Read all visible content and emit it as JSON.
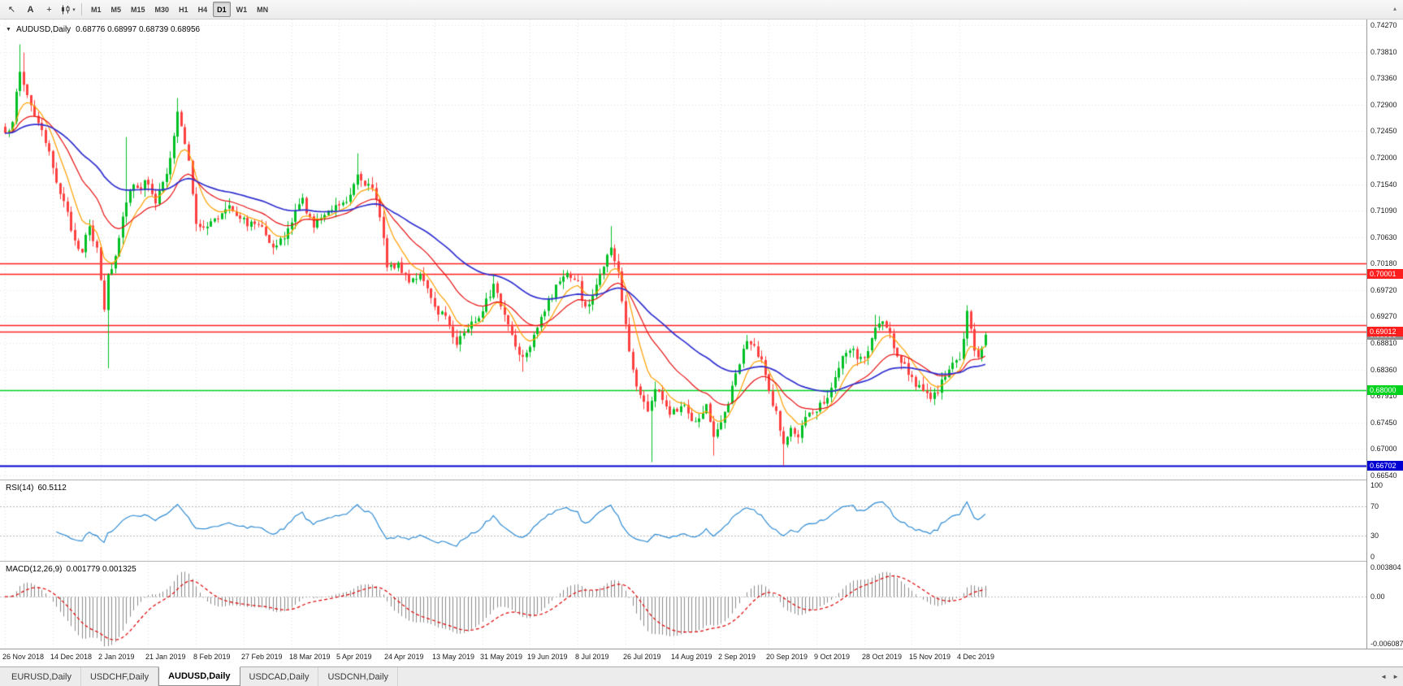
{
  "toolbar": {
    "tools": [
      {
        "id": "cursor",
        "icon": "pointer-icon"
      },
      {
        "id": "text",
        "label": "A"
      },
      {
        "id": "crosshair",
        "icon": "crosshair-icon"
      },
      {
        "id": "chart-type",
        "icon": "candlestick-chart-icon",
        "dropdown": true
      }
    ],
    "timeframes": [
      "M1",
      "M5",
      "M15",
      "M30",
      "H1",
      "H4",
      "D1",
      "W1",
      "MN"
    ],
    "active_timeframe": "D1"
  },
  "chart": {
    "title": "AUDUSD,Daily",
    "ohlc": "0.68776 0.68997 0.68739 0.68956"
  },
  "rsi": {
    "label": "RSI(14)",
    "value": "60.5112",
    "axis_labels": [
      "100",
      "70",
      "30",
      "0"
    ]
  },
  "macd": {
    "label": "MACD(12,26,9)",
    "values": "0.001779 0.001325",
    "axis_labels": [
      "0.003804",
      "0.00",
      "-0.006087"
    ]
  },
  "current_price": {
    "value": "0.68956",
    "color": "#909090"
  },
  "tabs": {
    "items": [
      "EURUSD,Daily",
      "USDCHF,Daily",
      "AUDUSD,Daily",
      "USDCAD,Daily",
      "USDCNH,Daily"
    ],
    "active_index": 2
  },
  "chart_data": {
    "type": "candlestick",
    "symbol": "AUDUSD",
    "timeframe": "Daily",
    "candle_count": 268,
    "last_candle": {
      "open": 0.68776,
      "high": 0.68997,
      "low": 0.68739,
      "close": 0.68956
    },
    "candle_up_color": "#00C024",
    "candle_down_color": "#FF4040",
    "y_ticks": [
      "0.74270",
      "0.73810",
      "0.73360",
      "0.72900",
      "0.72450",
      "0.72000",
      "0.71540",
      "0.71090",
      "0.70630",
      "0.70180",
      "0.69720",
      "0.69270",
      "0.68810",
      "0.68360",
      "0.67910",
      "0.67450",
      "0.67000",
      "0.66540"
    ],
    "x_labels": [
      "26 Nov 2018",
      "14 Dec 2018",
      "2 Jan 2019",
      "21 Jan 2019",
      "8 Feb 2019",
      "27 Feb 2019",
      "18 Mar 2019",
      "5 Apr 2019",
      "24 Apr 2019",
      "13 May 2019",
      "31 May 2019",
      "19 Jun 2019",
      "8 Jul 2019",
      "26 Jul 2019",
      "14 Aug 2019",
      "2 Sep 2019",
      "20 Sep 2019",
      "9 Oct 2019",
      "28 Oct 2019",
      "15 Nov 2019",
      "4 Dec 2019"
    ],
    "bars_per_label": 13,
    "hlines": [
      {
        "price": 0.7018,
        "label": null,
        "color": "#FF1E1E",
        "lw": 1.5
      },
      {
        "price": 0.70001,
        "label": "0.70001",
        "color": "#FF1E1E",
        "lw": 1.5
      },
      {
        "price": 0.6912,
        "label": null,
        "color": "#FF1E1E",
        "lw": 1.5
      },
      {
        "price": 0.69012,
        "label": "0.69012",
        "color": "#FF1E1E",
        "lw": 1.5
      },
      {
        "price": 0.68,
        "label": "0.68000",
        "color": "#00D21E",
        "lw": 1.5
      },
      {
        "price": 0.66702,
        "label": "0.66702",
        "color": "#0000D2",
        "lw": 2
      }
    ],
    "close_path_anchors": [
      [
        0,
        0.7235
      ],
      [
        2,
        0.7268
      ],
      [
        4,
        0.7345
      ],
      [
        6,
        0.7308
      ],
      [
        9,
        0.7258
      ],
      [
        13,
        0.7185
      ],
      [
        16,
        0.712
      ],
      [
        19,
        0.7058
      ],
      [
        21,
        0.7042
      ],
      [
        23,
        0.7078
      ],
      [
        25,
        0.704
      ],
      [
        26,
        0.6992
      ],
      [
        27,
        0.694
      ],
      [
        28,
        0.7
      ],
      [
        29,
        0.701
      ],
      [
        31,
        0.7065
      ],
      [
        33,
        0.713
      ],
      [
        35,
        0.7155
      ],
      [
        37,
        0.715
      ],
      [
        39,
        0.716
      ],
      [
        41,
        0.7125
      ],
      [
        44,
        0.7168
      ],
      [
        46,
        0.7235
      ],
      [
        47,
        0.728
      ],
      [
        48,
        0.725
      ],
      [
        50,
        0.719
      ],
      [
        52,
        0.7092
      ],
      [
        54,
        0.7075
      ],
      [
        56,
        0.7088
      ],
      [
        58,
        0.7098
      ],
      [
        61,
        0.7122
      ],
      [
        63,
        0.7105
      ],
      [
        65,
        0.7092
      ],
      [
        67,
        0.7085
      ],
      [
        70,
        0.7088
      ],
      [
        73,
        0.7042
      ],
      [
        76,
        0.7062
      ],
      [
        78,
        0.7092
      ],
      [
        81,
        0.7128
      ],
      [
        84,
        0.7078
      ],
      [
        87,
        0.7108
      ],
      [
        90,
        0.7118
      ],
      [
        93,
        0.7128
      ],
      [
        96,
        0.7172
      ],
      [
        98,
        0.7158
      ],
      [
        100,
        0.7142
      ],
      [
        102,
        0.7102
      ],
      [
        104,
        0.7018
      ],
      [
        107,
        0.7012
      ],
      [
        110,
        0.6992
      ],
      [
        113,
        0.6998
      ],
      [
        115,
        0.6968
      ],
      [
        117,
        0.6942
      ],
      [
        120,
        0.6928
      ],
      [
        123,
        0.6882
      ],
      [
        126,
        0.6908
      ],
      [
        129,
        0.6928
      ],
      [
        131,
        0.6958
      ],
      [
        133,
        0.6978
      ],
      [
        136,
        0.6932
      ],
      [
        139,
        0.6878
      ],
      [
        141,
        0.6858
      ],
      [
        143,
        0.6882
      ],
      [
        146,
        0.6928
      ],
      [
        149,
        0.6962
      ],
      [
        152,
        0.7002
      ],
      [
        154,
        0.6992
      ],
      [
        156,
        0.6982
      ],
      [
        158,
        0.6938
      ],
      [
        160,
        0.6962
      ],
      [
        163,
        0.7018
      ],
      [
        165,
        0.7042
      ],
      [
        167,
        0.7002
      ],
      [
        169,
        0.6908
      ],
      [
        171,
        0.6832
      ],
      [
        173,
        0.6792
      ],
      [
        175,
        0.6768
      ],
      [
        177,
        0.6802
      ],
      [
        179,
        0.6788
      ],
      [
        181,
        0.6758
      ],
      [
        183,
        0.6768
      ],
      [
        185,
        0.6782
      ],
      [
        187,
        0.6748
      ],
      [
        189,
        0.6758
      ],
      [
        191,
        0.6772
      ],
      [
        193,
        0.6726
      ],
      [
        195,
        0.6742
      ],
      [
        198,
        0.6802
      ],
      [
        200,
        0.6852
      ],
      [
        202,
        0.6882
      ],
      [
        204,
        0.6872
      ],
      [
        206,
        0.6848
      ],
      [
        208,
        0.6798
      ],
      [
        210,
        0.6762
      ],
      [
        212,
        0.6706
      ],
      [
        214,
        0.6732
      ],
      [
        216,
        0.6722
      ],
      [
        218,
        0.6748
      ],
      [
        220,
        0.6762
      ],
      [
        222,
        0.6778
      ],
      [
        224,
        0.6792
      ],
      [
        226,
        0.6818
      ],
      [
        228,
        0.6852
      ],
      [
        230,
        0.6872
      ],
      [
        232,
        0.6858
      ],
      [
        234,
        0.6852
      ],
      [
        237,
        0.6906
      ],
      [
        239,
        0.6918
      ],
      [
        241,
        0.6892
      ],
      [
        243,
        0.6862
      ],
      [
        246,
        0.6832
      ],
      [
        249,
        0.6802
      ],
      [
        251,
        0.6788
      ],
      [
        253,
        0.6792
      ],
      [
        256,
        0.6822
      ],
      [
        258,
        0.6842
      ],
      [
        260,
        0.6856
      ],
      [
        262,
        0.693
      ],
      [
        263,
        0.6902
      ],
      [
        264,
        0.6872
      ],
      [
        265,
        0.6858
      ],
      [
        266,
        0.6878
      ],
      [
        267,
        0.68956
      ]
    ],
    "wick_events": [
      {
        "i": 4,
        "high": 0.7394
      },
      {
        "i": 5,
        "high": 0.738
      },
      {
        "i": 28,
        "low": 0.6838
      },
      {
        "i": 33,
        "high": 0.7235
      },
      {
        "i": 47,
        "high": 0.7302
      },
      {
        "i": 96,
        "high": 0.7207
      },
      {
        "i": 133,
        "high": 0.7
      },
      {
        "i": 141,
        "low": 0.6832
      },
      {
        "i": 165,
        "high": 0.7082
      },
      {
        "i": 176,
        "low": 0.6677
      },
      {
        "i": 193,
        "low": 0.6688
      },
      {
        "i": 212,
        "low": 0.6671
      },
      {
        "i": 237,
        "high": 0.693
      },
      {
        "i": 262,
        "high": 0.6945
      }
    ],
    "moving_averages": [
      {
        "period": 8,
        "color": "#FFA000"
      },
      {
        "period": 21,
        "color": "#E81010"
      },
      {
        "period": 50,
        "color": "#3030D0"
      }
    ],
    "indicators": [
      {
        "name": "RSI",
        "period": 14,
        "value": 60.5112,
        "levels": [
          30,
          70
        ],
        "color": "#2E8BD4"
      },
      {
        "name": "MACD",
        "fast": 12,
        "slow": 26,
        "signal": 9,
        "main_value": 0.001779,
        "signal_value": 0.001325,
        "hist_color": "#8A8A8A",
        "signal_color": "#E00000",
        "axis_max": 0.003804,
        "axis_min": -0.006087
      }
    ]
  }
}
